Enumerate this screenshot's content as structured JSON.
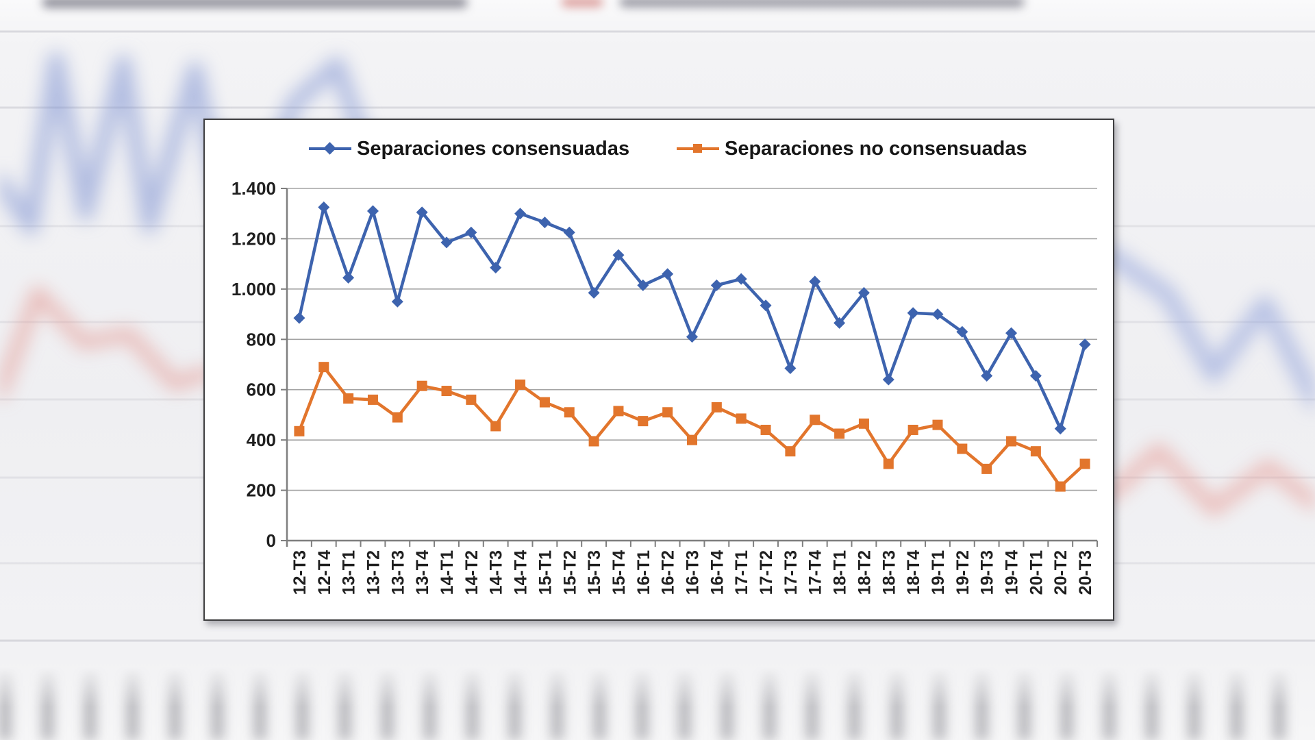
{
  "chart_data": {
    "type": "line",
    "categories": [
      "12-T3",
      "12-T4",
      "13-T1",
      "13-T2",
      "13-T3",
      "13-T4",
      "14-T1",
      "14-T2",
      "14-T3",
      "14-T4",
      "15-T1",
      "15-T2",
      "15-T3",
      "15-T4",
      "16-T1",
      "16-T2",
      "16-T3",
      "16-T4",
      "17-T1",
      "17-T2",
      "17-T3",
      "17-T4",
      "18-T1",
      "18-T2",
      "18-T3",
      "18-T4",
      "19-T1",
      "19-T2",
      "19-T3",
      "19-T4",
      "20-T1",
      "20-T2",
      "20-T3"
    ],
    "series": [
      {
        "name": "Separaciones consensuadas",
        "color": "#3d63ae",
        "marker": "diamond",
        "values": [
          885,
          1325,
          1045,
          1310,
          950,
          1305,
          1185,
          1225,
          1085,
          1300,
          1265,
          1225,
          985,
          1135,
          1015,
          1060,
          810,
          1015,
          1040,
          935,
          685,
          1030,
          865,
          985,
          640,
          905,
          900,
          830,
          655,
          825,
          655,
          445,
          780
        ]
      },
      {
        "name": "Separaciones no consensuadas",
        "color": "#e2752c",
        "marker": "square",
        "values": [
          435,
          690,
          565,
          560,
          490,
          615,
          595,
          560,
          455,
          620,
          550,
          510,
          395,
          515,
          475,
          510,
          400,
          530,
          485,
          440,
          355,
          480,
          425,
          465,
          305,
          440,
          460,
          365,
          285,
          395,
          355,
          215,
          305
        ]
      }
    ],
    "title": "",
    "xlabel": "",
    "ylabel": "",
    "ylim": [
      0,
      1400
    ],
    "ytick_step": 200,
    "ytick_labels": [
      "0",
      "200",
      "400",
      "600",
      "800",
      "1.000",
      "1.200",
      "1.400"
    ],
    "grid": "horizontal",
    "legend_position": "top",
    "gridline_color": "#a3a3a3",
    "axis_color": "#7f7f7f",
    "tick_label_color": "#1f1f1f"
  }
}
